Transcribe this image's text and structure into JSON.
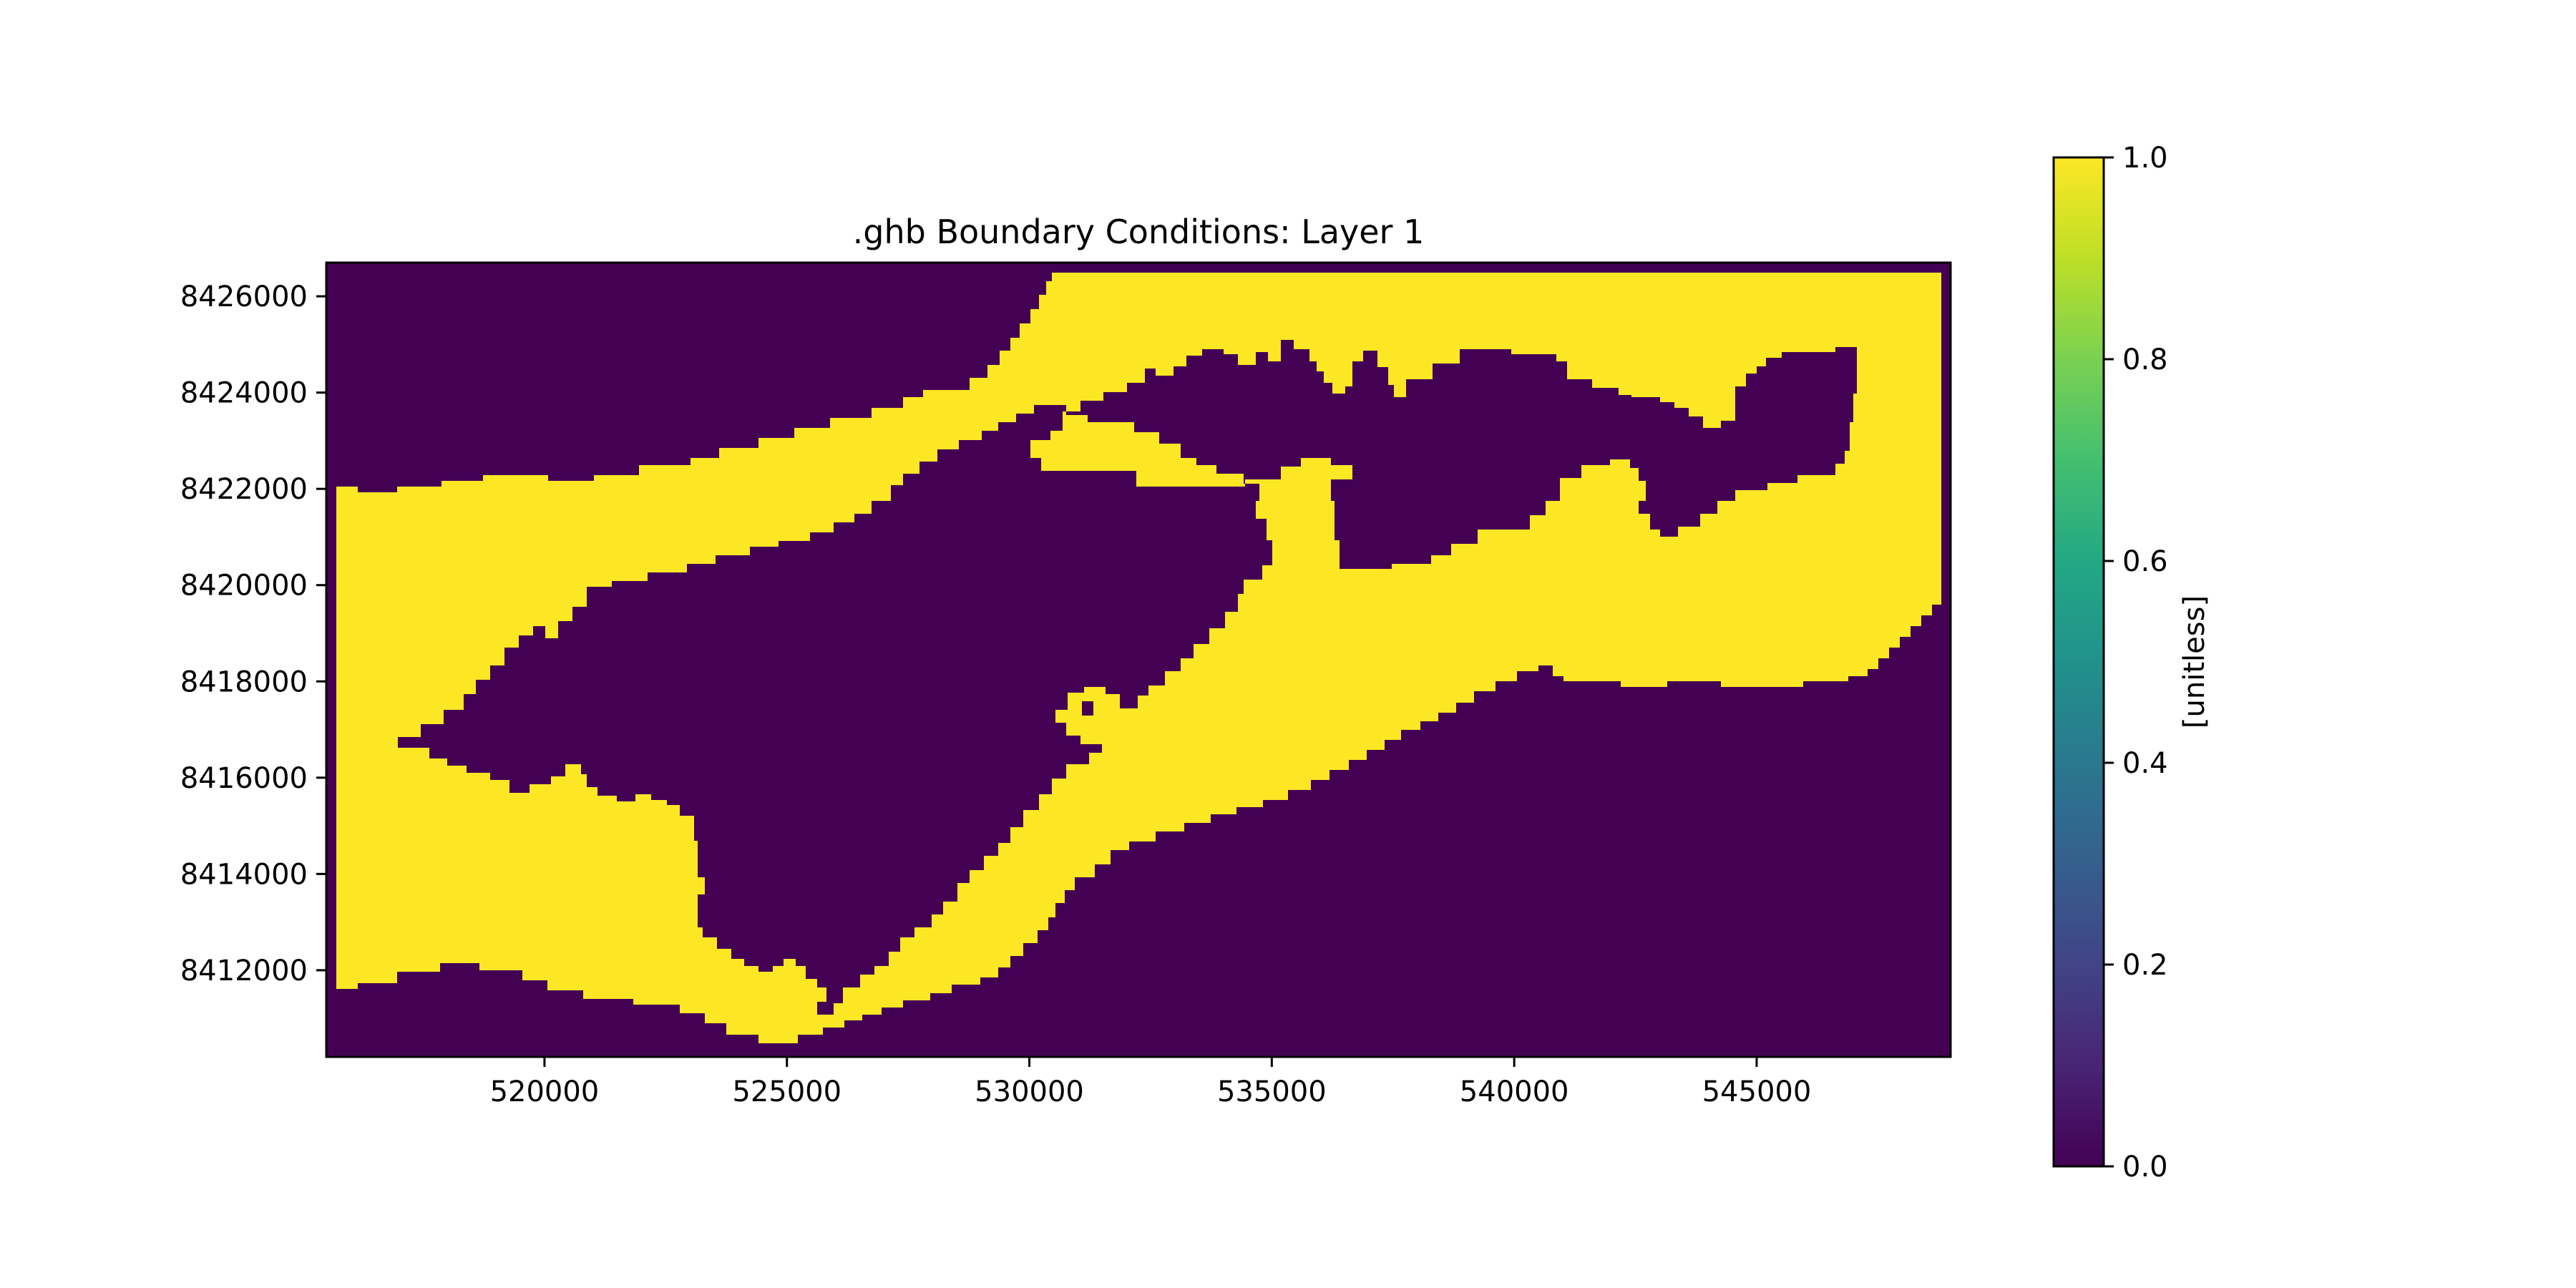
{
  "chart_data": {
    "type": "heatmap",
    "title": ".ghb Boundary Conditions: Layer 1",
    "xlim": [
      515500,
      549000
    ],
    "ylim": [
      8410200,
      8426700
    ],
    "x_ticks": [
      520000,
      525000,
      530000,
      535000,
      540000,
      545000
    ],
    "y_ticks": [
      8412000,
      8414000,
      8416000,
      8418000,
      8420000,
      8422000,
      8424000,
      8426000
    ],
    "x_tick_labels": [
      "520000",
      "525000",
      "530000",
      "535000",
      "540000",
      "545000"
    ],
    "y_tick_labels": [
      "8412000",
      "8414000",
      "8416000",
      "8418000",
      "8420000",
      "8422000",
      "8424000",
      "8426000"
    ],
    "value_range": [
      0.0,
      1.0
    ],
    "colormap": "viridis",
    "colors": {
      "low": "#440154",
      "high": "#fde725"
    },
    "values_present": [
      0.0,
      1.0
    ],
    "description_of_regions": "value 1.0 forms an outer band and a channel band around the value 0.0 landmass",
    "colorbar": {
      "label": "[unitless]",
      "ticks": [
        0.0,
        0.2,
        0.4,
        0.6,
        0.8,
        1.0
      ],
      "tick_labels": [
        "0.0",
        "0.2",
        "0.4",
        "0.6",
        "0.8",
        "1.0"
      ]
    },
    "grid": false,
    "legend": "colorbar-right"
  }
}
